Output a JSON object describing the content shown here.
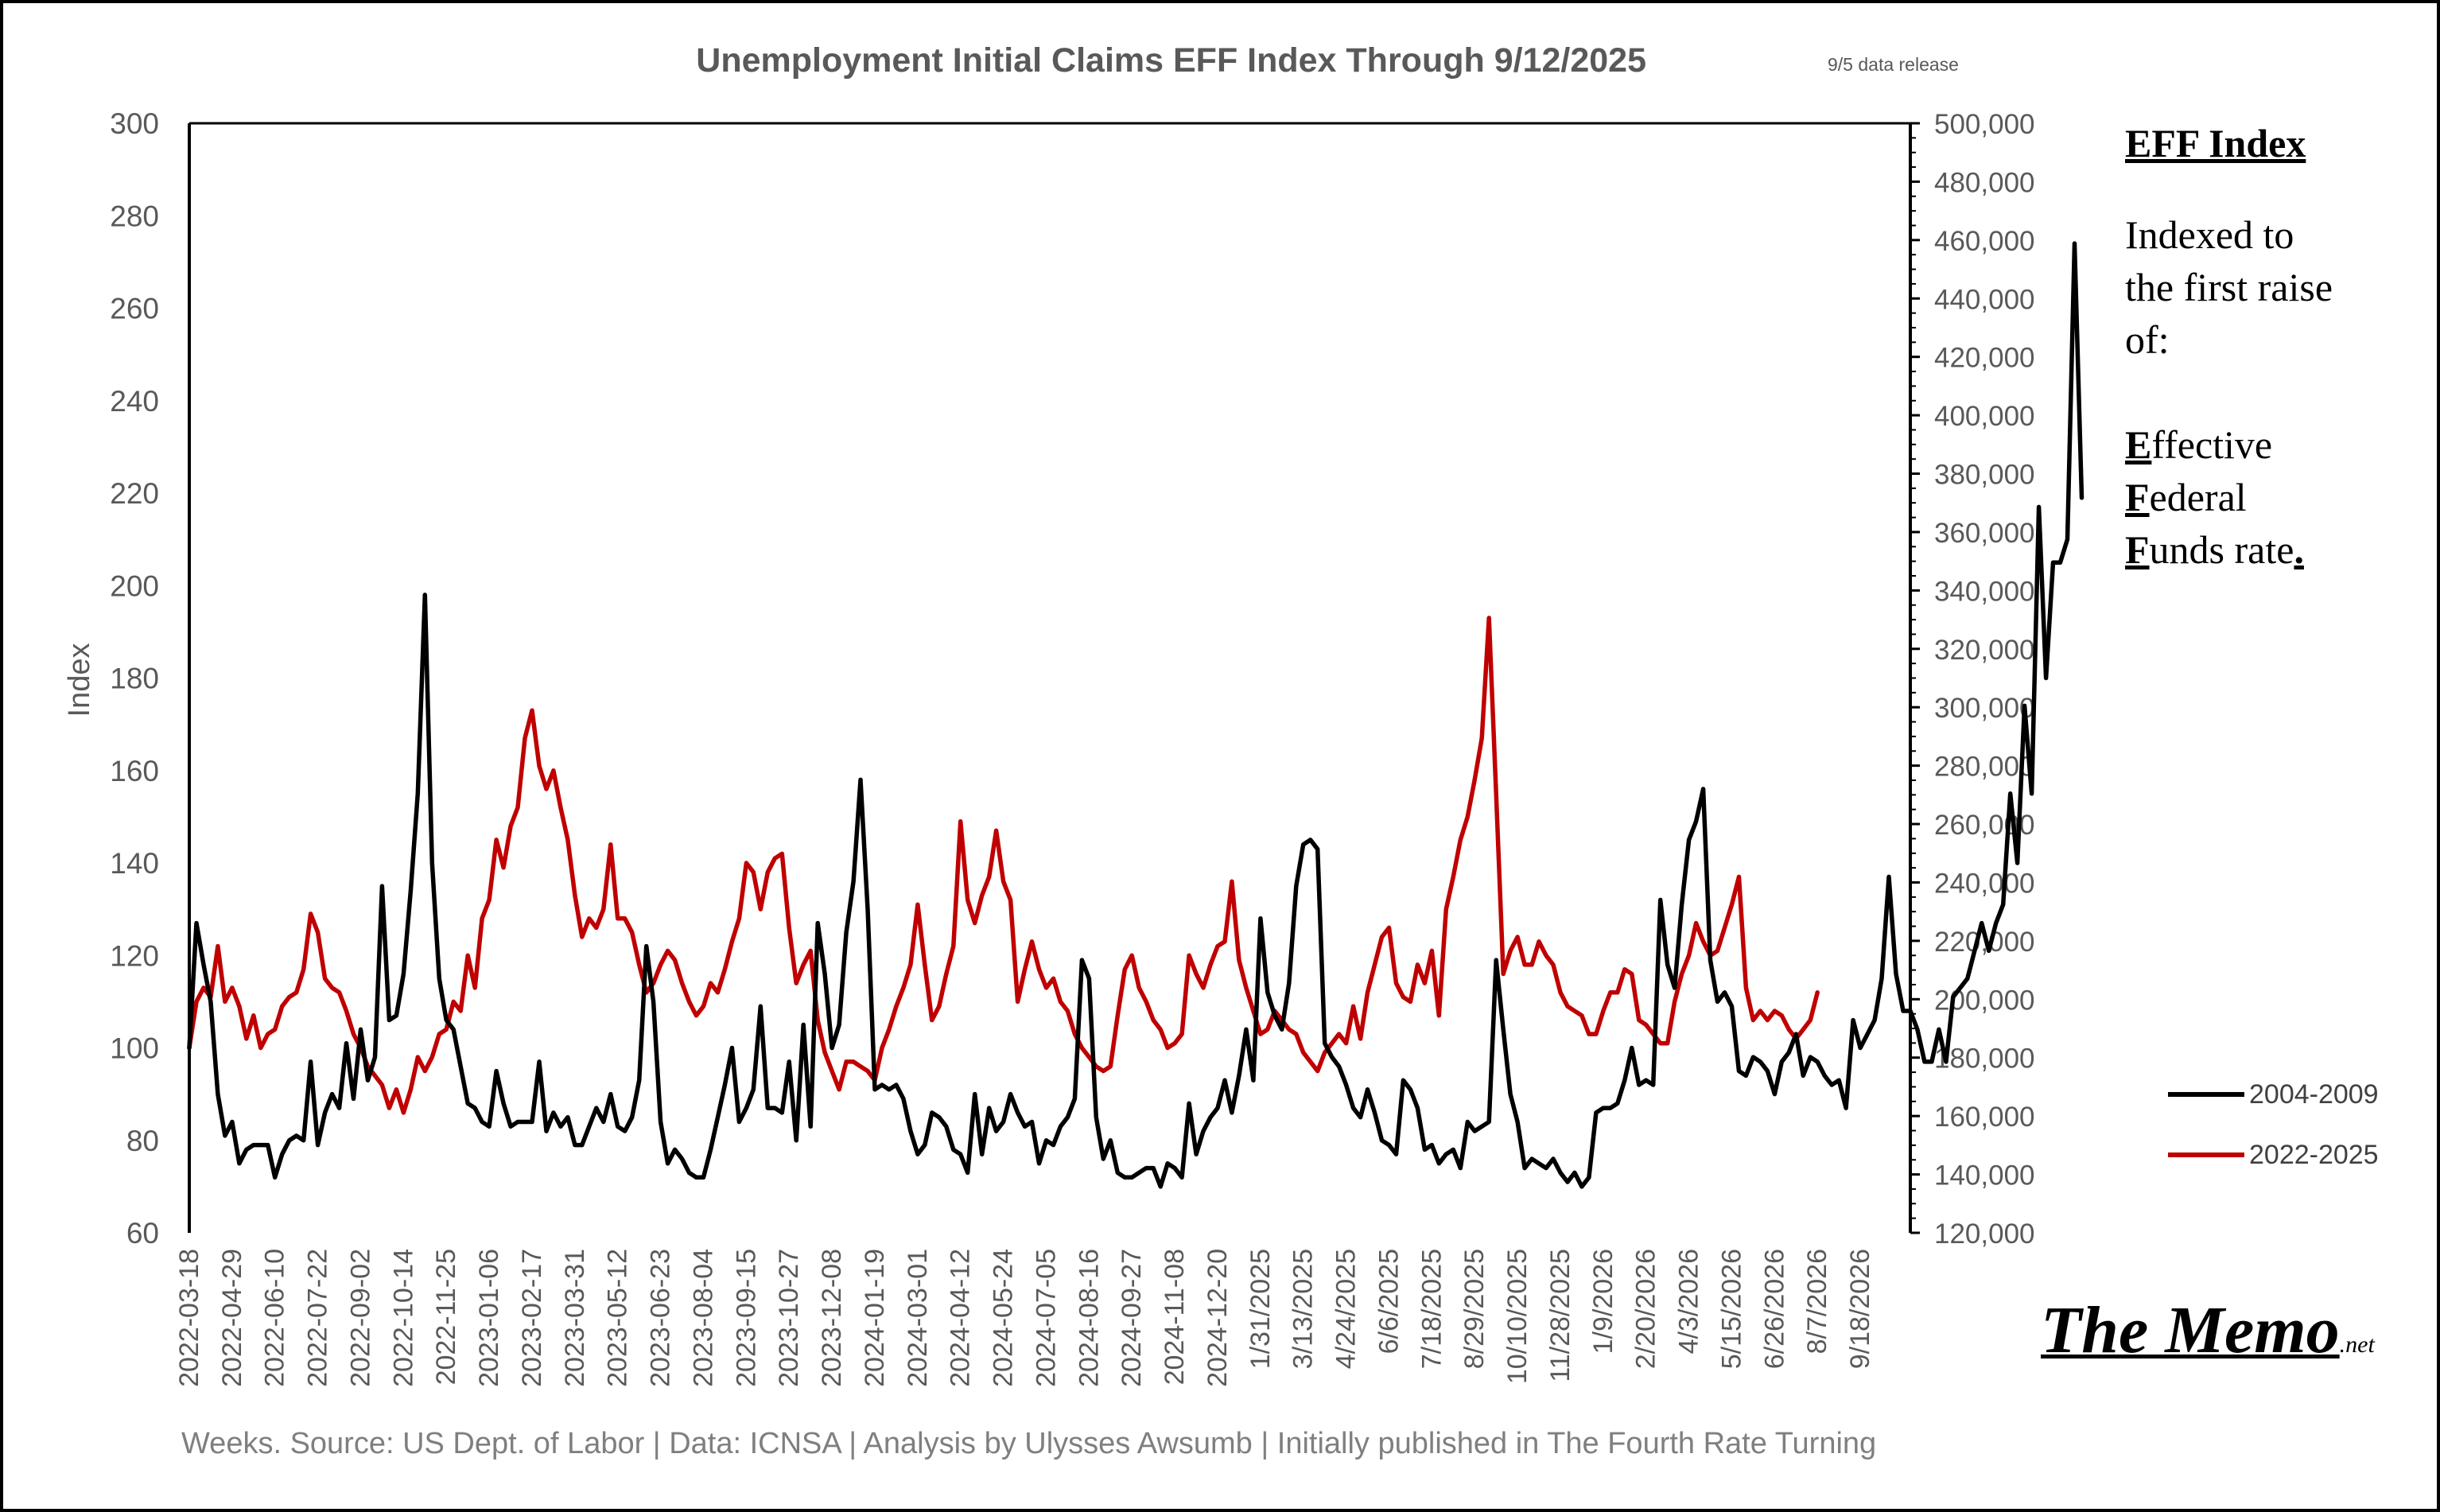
{
  "page": {
    "background": "#ffffff",
    "frame_color": "#000000"
  },
  "chart_data": {
    "type": "line",
    "title": "Unemployment Initial Claims EFF Index Through 9/12/2025",
    "subtitle": "9/5 data release",
    "xlabel": "",
    "ylabel": "Index",
    "ylim": [
      60,
      300
    ],
    "y_ticks": [
      60,
      80,
      100,
      120,
      140,
      160,
      180,
      200,
      220,
      240,
      260,
      280,
      300
    ],
    "y2lim": [
      120000,
      500000
    ],
    "y2_ticks": [
      "120,000",
      "140,000",
      "160,000",
      "180,000",
      "200,000",
      "220,000",
      "240,000",
      "260,000",
      "280,000",
      "300,000",
      "320,000",
      "340,000",
      "360,000",
      "380,000",
      "400,000",
      "420,000",
      "440,000",
      "460,000",
      "480,000",
      "500,000"
    ],
    "x_tick_labels": [
      "2022-03-18",
      "2022-04-29",
      "2022-06-10",
      "2022-07-22",
      "2022-09-02",
      "2022-10-14",
      "2022-11-25",
      "2023-01-06",
      "2023-02-17",
      "2023-03-31",
      "2023-05-12",
      "2023-06-23",
      "2023-08-04",
      "2023-09-15",
      "2023-10-27",
      "2023-12-08",
      "2024-01-19",
      "2024-03-01",
      "2024-04-12",
      "2024-05-24",
      "2024-07-05",
      "2024-08-16",
      "2024-09-27",
      "2024-11-08",
      "2024-12-20",
      "1/31/2025",
      "3/13/2025",
      "4/24/2025",
      "6/6/2025",
      "7/18/2025",
      "8/29/2025",
      "10/10/2025",
      "11/28/2025",
      "1/9/2026",
      "2/20/2026",
      "4/3/2026",
      "5/15/2026",
      "6/26/2026",
      "8/7/2026",
      "9/18/2026"
    ],
    "x_tick_step": 6,
    "n_weeks": 240,
    "series": [
      {
        "name": "2004-2009",
        "color": "#000000",
        "values": [
          100,
          127,
          118,
          110,
          90,
          81,
          84,
          75,
          78,
          79,
          79,
          79,
          72,
          77,
          80,
          81,
          80,
          97,
          79,
          86,
          90,
          87,
          101,
          89,
          104,
          93,
          98,
          135,
          106,
          107,
          116,
          134,
          155,
          198,
          140,
          115,
          106,
          104,
          96,
          88,
          87,
          84,
          83,
          95,
          88,
          83,
          84,
          84,
          84,
          97,
          82,
          86,
          83,
          85,
          79,
          79,
          83,
          87,
          84,
          90,
          83,
          82,
          85,
          93,
          122,
          110,
          84,
          75,
          78,
          76,
          73,
          72,
          72,
          78,
          85,
          92,
          100,
          84,
          87,
          91,
          109,
          87,
          87,
          86,
          97,
          80,
          105,
          83,
          127,
          116,
          100,
          105,
          125,
          136,
          158,
          130,
          91,
          92,
          91,
          92,
          89,
          82,
          77,
          79,
          86,
          85,
          83,
          78,
          77,
          73,
          90,
          77,
          87,
          82,
          84,
          90,
          86,
          83,
          84,
          75,
          80,
          79,
          83,
          85,
          89,
          119,
          115,
          85,
          76,
          80,
          73,
          72,
          72,
          73,
          74,
          74,
          70,
          75,
          74,
          72,
          88,
          77,
          82,
          85,
          87,
          93,
          86,
          94,
          104,
          93,
          128,
          112,
          107,
          104,
          114,
          135,
          144,
          145,
          143,
          101,
          98,
          96,
          92,
          87,
          85,
          91,
          86,
          80,
          79,
          77,
          93,
          91,
          87,
          78,
          79,
          75,
          77,
          78,
          74,
          84,
          82,
          83,
          84,
          119,
          104,
          90,
          84,
          74,
          76,
          75,
          74,
          76,
          73,
          71,
          73,
          70,
          72,
          86,
          87,
          87,
          88,
          93,
          100,
          92,
          93,
          92,
          132,
          118,
          113,
          131,
          145,
          149,
          156,
          119,
          110,
          112,
          109,
          95,
          94,
          98,
          97,
          95,
          90,
          97,
          99,
          103,
          94,
          98,
          97,
          94,
          92,
          93,
          87,
          106,
          100,
          103,
          106,
          115,
          137,
          116,
          108,
          108,
          104,
          97,
          97,
          104,
          97,
          111,
          113,
          115,
          121,
          127,
          121,
          127,
          131,
          155,
          140,
          174,
          155,
          217,
          180,
          205,
          205,
          210,
          274,
          219
        ],
        "note": "Trailing points extend past the last category label."
      },
      {
        "name": "2022-2025",
        "color": "#c00000",
        "values": [
          100,
          110,
          113,
          111,
          122,
          110,
          113,
          109,
          102,
          107,
          100,
          103,
          104,
          109,
          111,
          112,
          117,
          129,
          125,
          115,
          113,
          112,
          108,
          103,
          100,
          96,
          94,
          92,
          87,
          91,
          86,
          91,
          98,
          95,
          98,
          103,
          104,
          110,
          108,
          120,
          113,
          128,
          132,
          145,
          139,
          148,
          152,
          167,
          173,
          161,
          156,
          160,
          152,
          145,
          133,
          124,
          128,
          126,
          130,
          144,
          128,
          128,
          125,
          118,
          112,
          114,
          118,
          121,
          119,
          114,
          110,
          107,
          109,
          114,
          112,
          117,
          123,
          128,
          140,
          138,
          130,
          138,
          141,
          142,
          126,
          114,
          118,
          121,
          106,
          99,
          95,
          91,
          97,
          97,
          96,
          95,
          93,
          100,
          104,
          109,
          113,
          118,
          131,
          118,
          106,
          109,
          116,
          122,
          149,
          132,
          127,
          133,
          137,
          147,
          136,
          132,
          110,
          117,
          123,
          117,
          113,
          115,
          110,
          108,
          103,
          100,
          98,
          96,
          95,
          96,
          107,
          117,
          120,
          113,
          110,
          106,
          104,
          100,
          101,
          103,
          120,
          116,
          113,
          118,
          122,
          123,
          136,
          119,
          113,
          108,
          103,
          104,
          108,
          106,
          104,
          103,
          99,
          97,
          95,
          99,
          101,
          103,
          101,
          109,
          102,
          112,
          118,
          124,
          126,
          114,
          111,
          110,
          118,
          114,
          121,
          107,
          130,
          137,
          145,
          150,
          158,
          167,
          193,
          155,
          116,
          121,
          124,
          118,
          118,
          123,
          120,
          118,
          112,
          109,
          108,
          107,
          103,
          103,
          108,
          112,
          112,
          117,
          116,
          106,
          105,
          103,
          101,
          101,
          110,
          116,
          120,
          127,
          123,
          120,
          121,
          126,
          131,
          137,
          113,
          106,
          108,
          106,
          108,
          107,
          104,
          102,
          104,
          106,
          112
        ],
        "note": ""
      }
    ]
  },
  "side_note": {
    "title": "EFF Index",
    "text_lines": [
      "Indexed to",
      "the first raise",
      "of:"
    ],
    "terms": [
      {
        "initial": "E",
        "rest": "ffective"
      },
      {
        "initial": "F",
        "rest": "ederal"
      },
      {
        "initial": "F",
        "rest": "unds rate",
        "trail": "."
      }
    ]
  },
  "footer": {
    "source": "Weeks. Source: US Dept. of Labor | Data: ICNSA | Analysis by Ulysses Awsumb | Initially published in The Fourth Rate Turning"
  },
  "brand": {
    "main": "The Memo",
    "suffix": ".net"
  },
  "colors": {
    "axis": "#000000",
    "label": "#595959",
    "title": "#595959",
    "tick": "#595959"
  }
}
